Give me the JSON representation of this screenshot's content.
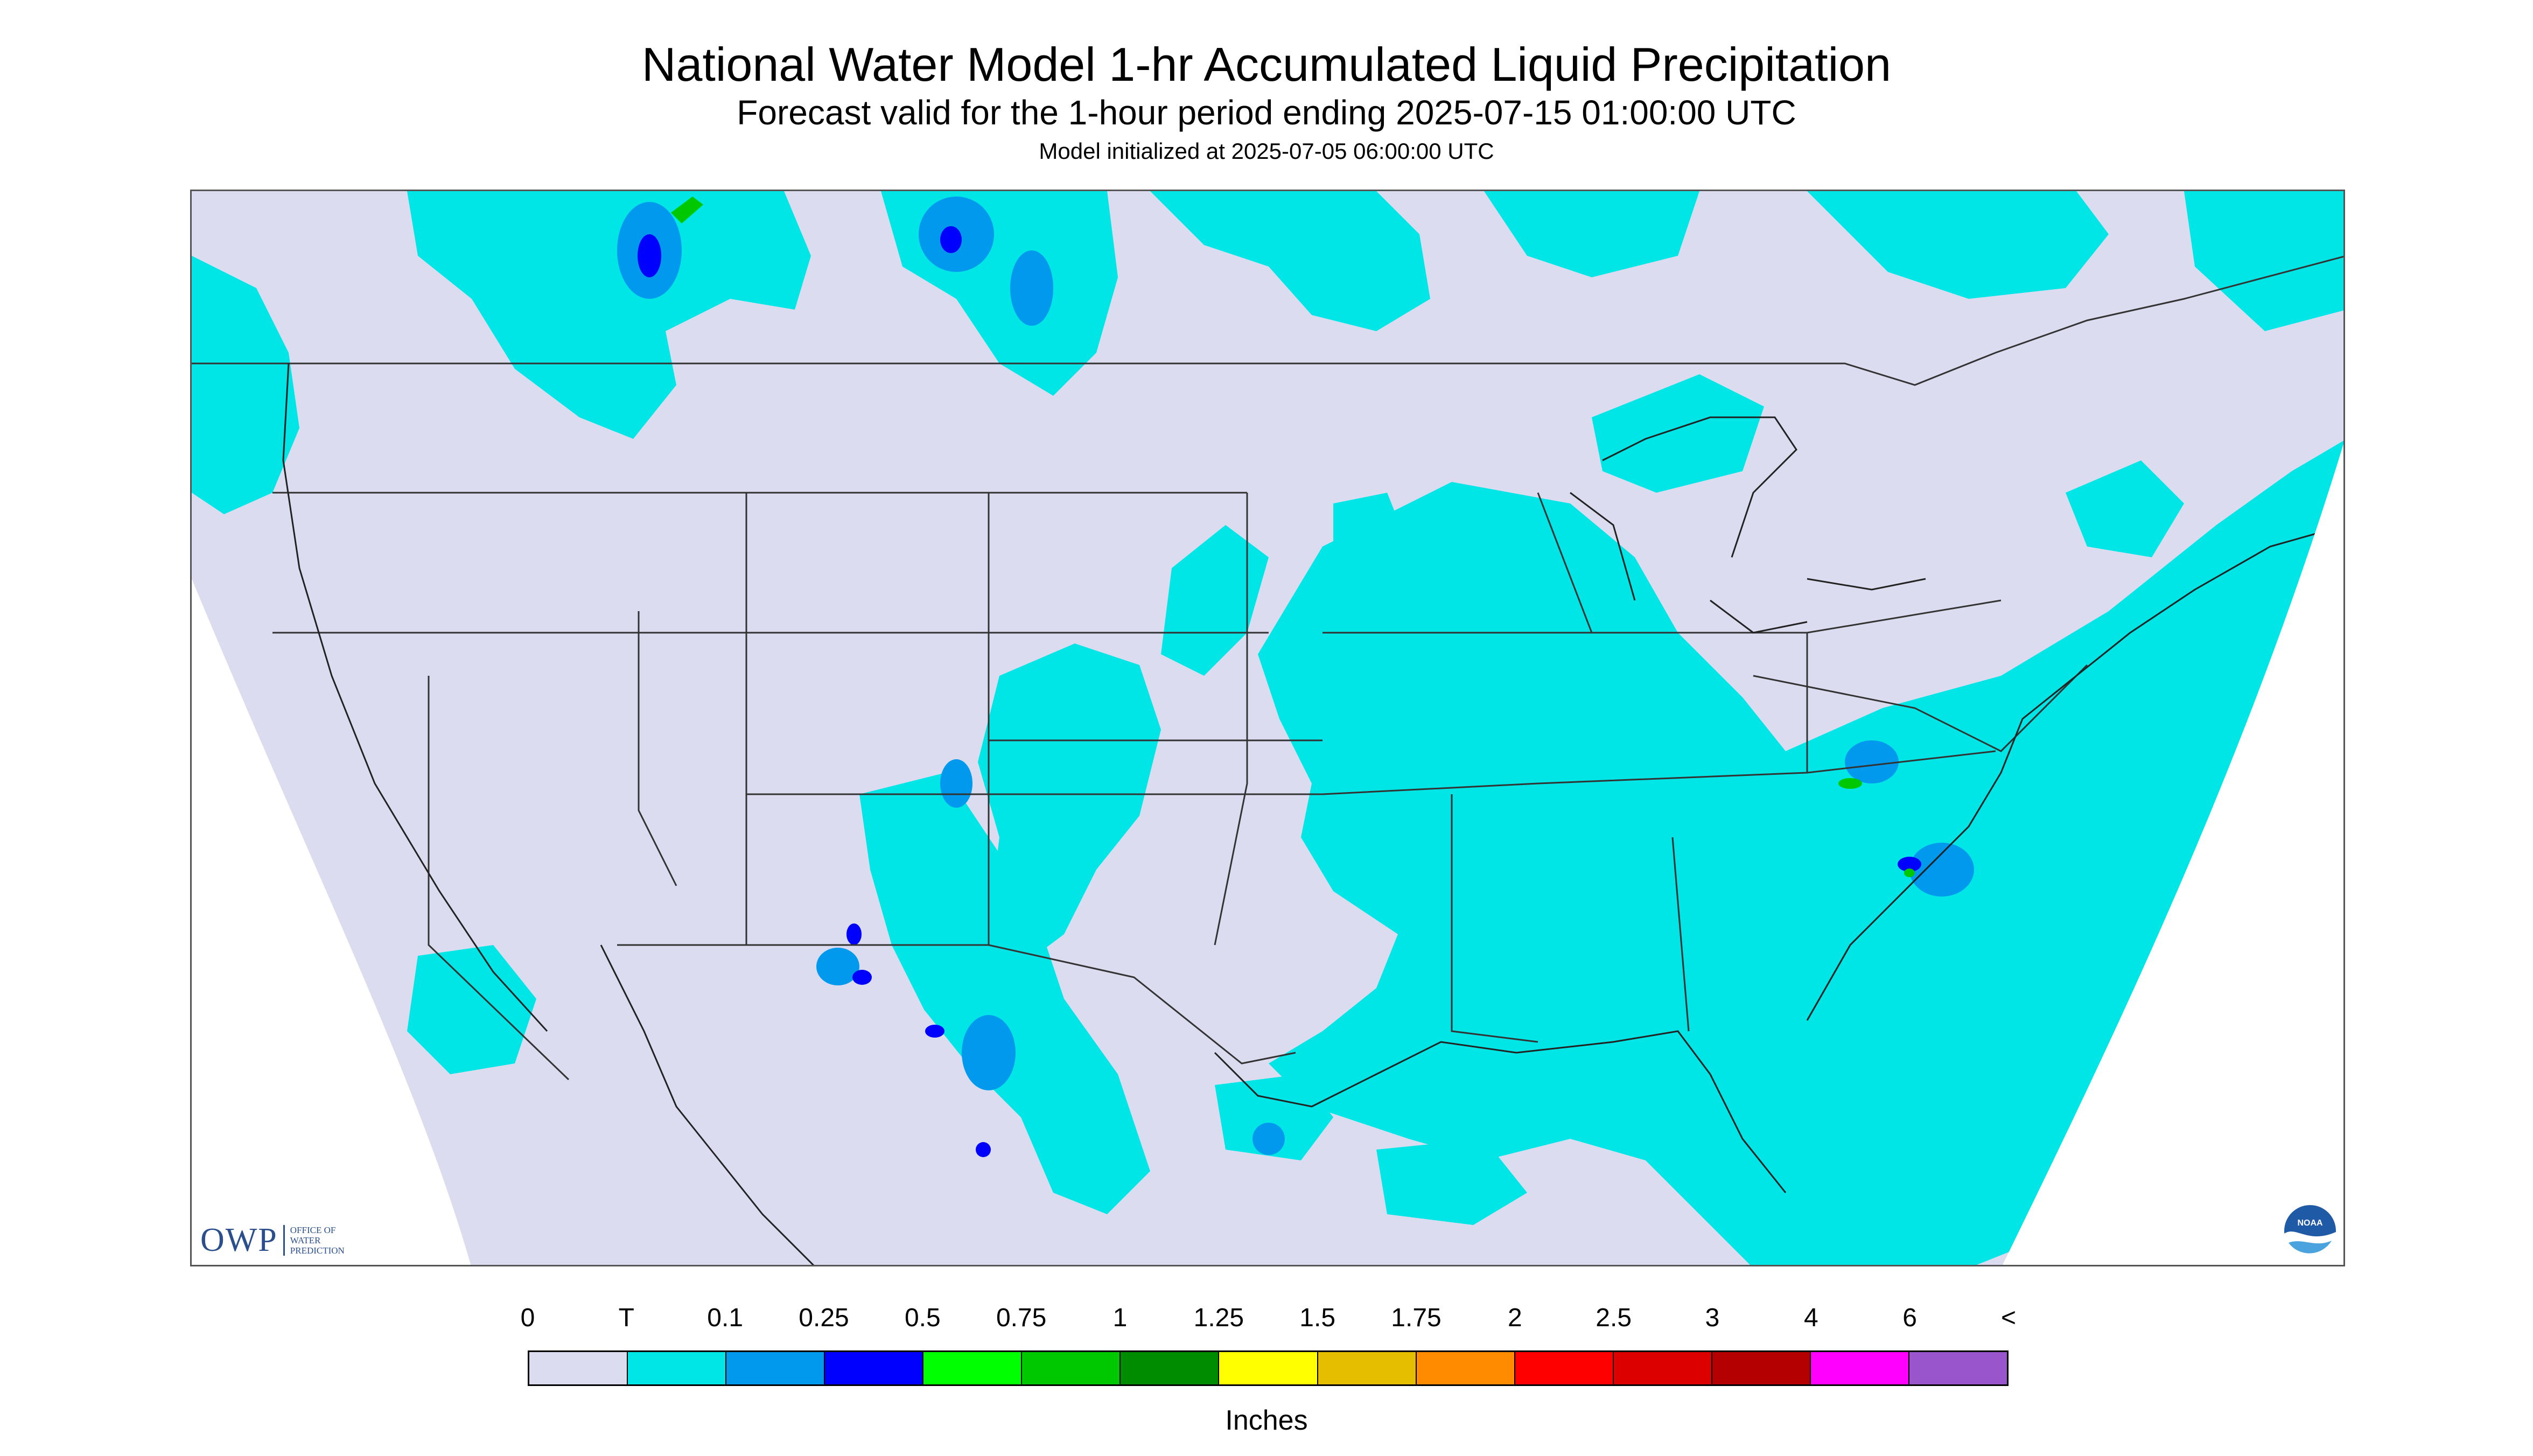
{
  "title": "National Water Model 1-hr Accumulated Liquid Precipitation",
  "subtitle": "Forecast valid for the 1-hour period ending 2025-07-15 01:00:00 UTC",
  "init_text": "Model initialized at 2025-07-05 06:00:00 UTC",
  "owp_logo": {
    "mark": "OWP",
    "lines": [
      "OFFICE OF",
      "WATER",
      "PREDICTION"
    ]
  },
  "noaa_logo": {
    "text": "NOAA",
    "icon": "noaa-logo-icon"
  },
  "legend": {
    "units": "Inches",
    "labels": [
      "0",
      "T",
      "0.1",
      "0.25",
      "0.5",
      "0.75",
      "1",
      "1.25",
      "1.5",
      "1.75",
      "2",
      "2.5",
      "3",
      "4",
      "6",
      "<"
    ],
    "colors": [
      "#dcdcf0",
      "#00e5e5",
      "#0099ee",
      "#0000ff",
      "#00ff00",
      "#00c800",
      "#008c00",
      "#ffff00",
      "#e6be00",
      "#ff8c00",
      "#ff0000",
      "#dc0000",
      "#b40000",
      "#ff00ff",
      "#9955cc"
    ]
  },
  "colors": {
    "no_precip": "#dcdcf0",
    "trace": "#00e5e5",
    "outside_domain": "#ffffff",
    "borders": "#333333"
  }
}
